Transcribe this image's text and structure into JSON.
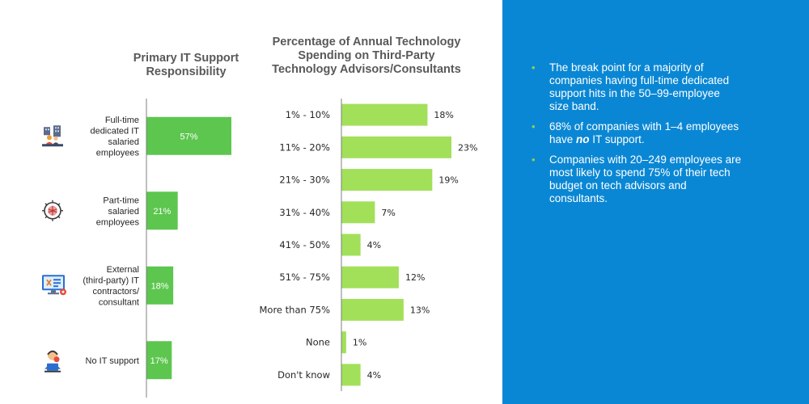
{
  "chart_data": [
    {
      "type": "bar",
      "orientation": "horizontal",
      "title": "Primary IT Support Responsibility",
      "categories": [
        "Full-time dedicated IT salaried employees",
        "Part-time salaried employees",
        "External (third-party) IT contractors/ consultant",
        "No IT support"
      ],
      "category_lines": [
        [
          "Full-time",
          "dedicated IT",
          "salaried",
          "employees"
        ],
        [
          "Part-time",
          "salaried",
          "employees"
        ],
        [
          "External",
          "(third-party) IT",
          "contractors/",
          "consultant"
        ],
        [
          "No IT support"
        ]
      ],
      "values": [
        57,
        21,
        18,
        17
      ],
      "value_labels": [
        "57%",
        "21%",
        "18%",
        "17%"
      ],
      "icons": [
        "office-workers-icon",
        "brain-icon",
        "computer-tools-icon",
        "support-agent-icon"
      ],
      "xlim": [
        0,
        57
      ],
      "grid": false,
      "bar_color": "#5cc64e"
    },
    {
      "type": "bar",
      "orientation": "horizontal",
      "title": "Percentage of Annual Technology Spending on Third-Party Technology Advisors/Consultants",
      "categories": [
        "1% - 10%",
        "11% - 20%",
        "21% - 30%",
        "31% - 40%",
        "41% - 50%",
        "51% - 75%",
        "More than 75%",
        "None",
        "Don't know"
      ],
      "values": [
        18,
        23,
        19,
        7,
        4,
        12,
        13,
        1,
        4
      ],
      "value_labels": [
        "18%",
        "23%",
        "19%",
        "7%",
        "4%",
        "12%",
        "13%",
        "1%",
        "4%"
      ],
      "xlim": [
        0,
        23
      ],
      "grid": false,
      "bar_color": "#a2e05a"
    }
  ],
  "left_title_lines": [
    "Primary IT Support",
    "Responsibility"
  ],
  "right_title_lines": [
    "Percentage of Annual Technology",
    "Spending on Third-Party",
    "Technology Advisors/Consultants"
  ],
  "bullets": [
    {
      "parts": [
        {
          "text": "The break point for a majority of companies having full-time dedicated support hits in the 50–99-employee size band."
        }
      ]
    },
    {
      "parts": [
        {
          "text": "68% of companies with 1–4 employees have "
        },
        {
          "text": "no",
          "style": "bold-italic"
        },
        {
          "text": " IT support."
        }
      ]
    },
    {
      "parts": [
        {
          "text": "Companies with 20–249 employees are most likely to spend 75% of their tech budget on tech advisors and consultants."
        }
      ]
    }
  ],
  "colors": {
    "panel": "#0a87d4",
    "bullet": "#92d050",
    "axis": "#7f7f7f"
  }
}
